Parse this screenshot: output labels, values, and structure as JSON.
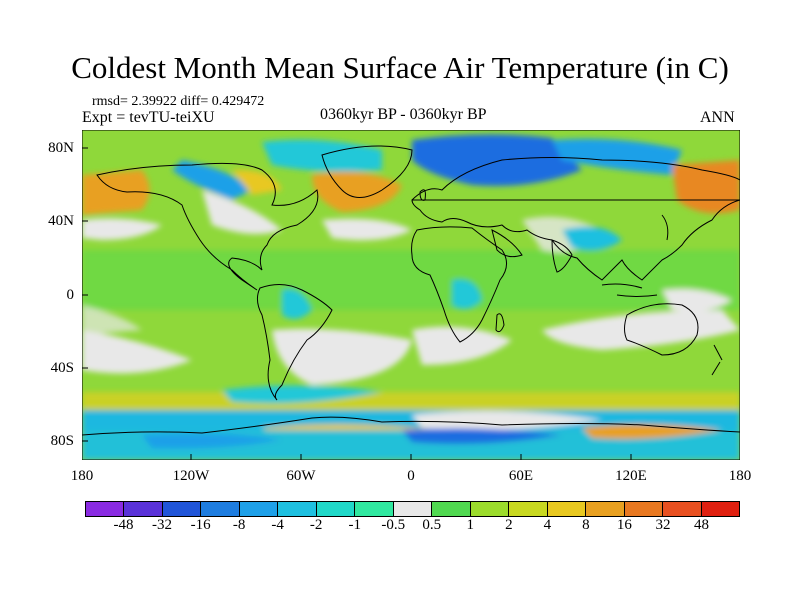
{
  "title": "Coldest Month Mean Surface Air Temperature (in C)",
  "stats": "rmsd= 2.39922 diff= 0.429472",
  "experiment": "Expt = tevTU-teiXU",
  "period": "0360kyr BP - 0360kyr BP",
  "season": "ANN",
  "map": {
    "y_labels": [
      "80N",
      "40N",
      "0",
      "40S",
      "80S"
    ],
    "x_labels": [
      "180",
      "120W",
      "60W",
      "0",
      "60E",
      "120E",
      "180"
    ]
  },
  "colorbar": {
    "labels": [
      "-48",
      "-32",
      "-16",
      "-8",
      "-4",
      "-2",
      "-1",
      "-0.5",
      "0.5",
      "1",
      "2",
      "4",
      "8",
      "16",
      "32",
      "48"
    ],
    "colors": [
      "#8a2be2",
      "#5a32d8",
      "#2055d8",
      "#1e7de0",
      "#1ea0e8",
      "#1ec0e0",
      "#20d8c8",
      "#30e8a0",
      "#e8e8e8",
      "#50d850",
      "#9cdc2c",
      "#c8d820",
      "#e8c820",
      "#e8a020",
      "#e87820",
      "#e85020",
      "#e02010"
    ]
  },
  "colors": {
    "ocean_base": "#7cd838",
    "warm": "#e89a20",
    "cold": "#1e7de0",
    "neutral": "#e8e8e8"
  }
}
